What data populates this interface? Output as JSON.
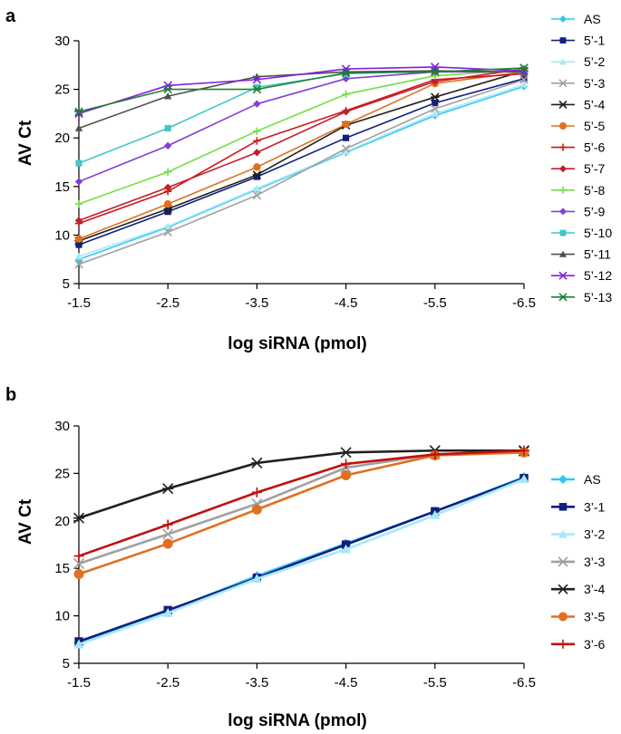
{
  "chart_data": [
    {
      "panel": "a",
      "type": "line",
      "title": "",
      "xlabel": "log siRNA (pmol)",
      "ylabel": "AV Ct",
      "x": [
        -1.5,
        -2.5,
        -3.5,
        -4.5,
        -5.5,
        -6.5
      ],
      "x_tick_labels": [
        "-1.5",
        "-2.5",
        "-3.5",
        "-4.5",
        "-5.5",
        "-6.5"
      ],
      "ylim": [
        5,
        30
      ],
      "y_ticks": [
        5,
        10,
        15,
        20,
        25,
        30
      ],
      "legend_position": "right",
      "series": [
        {
          "name": "AS",
          "color": "#30c8f0",
          "marker": "diamond",
          "values": [
            7.5,
            10.8,
            14.7,
            18.5,
            22.3,
            25.3
          ]
        },
        {
          "name": "5’-1",
          "color": "#102080",
          "marker": "square",
          "values": [
            9.0,
            12.4,
            16.0,
            20.0,
            23.6,
            26.1
          ]
        },
        {
          "name": "5’-2",
          "color": "#a8e8f8",
          "marker": "triangle",
          "values": [
            7.8,
            10.9,
            14.8,
            18.6,
            22.5,
            25.5
          ]
        },
        {
          "name": "5’-3",
          "color": "#a0a0a0",
          "marker": "x",
          "values": [
            7.0,
            10.3,
            14.1,
            18.9,
            23.0,
            26.0
          ]
        },
        {
          "name": "5’-4",
          "color": "#202020",
          "marker": "star",
          "values": [
            9.4,
            12.7,
            16.2,
            21.3,
            24.2,
            26.9
          ]
        },
        {
          "name": "5’-5",
          "color": "#e07020",
          "marker": "circle",
          "values": [
            9.6,
            13.2,
            17.0,
            21.4,
            25.6,
            26.8
          ]
        },
        {
          "name": "5’-6",
          "color": "#d01818",
          "marker": "plus",
          "values": [
            11.2,
            14.5,
            19.7,
            22.8,
            26.0,
            26.6
          ]
        },
        {
          "name": "5’-7",
          "color": "#c02030",
          "marker": "diamond",
          "values": [
            11.5,
            14.9,
            18.5,
            22.7,
            25.8,
            27.1
          ]
        },
        {
          "name": "5’-8",
          "color": "#70e040",
          "marker": "plus",
          "values": [
            13.2,
            16.5,
            20.7,
            24.5,
            26.4,
            27.0
          ]
        },
        {
          "name": "5’-9",
          "color": "#8040d8",
          "marker": "diamond",
          "values": [
            15.5,
            19.2,
            23.5,
            26.1,
            26.8,
            26.8
          ]
        },
        {
          "name": "5’-10",
          "color": "#40c8c8",
          "marker": "square",
          "values": [
            17.4,
            21.0,
            25.2,
            26.6,
            26.9,
            26.8
          ]
        },
        {
          "name": "5’-11",
          "color": "#505050",
          "marker": "triangle",
          "values": [
            21.0,
            24.3,
            26.3,
            26.8,
            26.9,
            26.8
          ]
        },
        {
          "name": "5’-12",
          "color": "#8020e0",
          "marker": "x",
          "values": [
            22.5,
            25.4,
            26.0,
            27.1,
            27.3,
            26.9
          ]
        },
        {
          "name": "5’-13",
          "color": "#208030",
          "marker": "star",
          "values": [
            22.7,
            25.0,
            25.0,
            26.7,
            26.8,
            27.2
          ]
        }
      ]
    },
    {
      "panel": "b",
      "type": "line",
      "title": "",
      "xlabel": "log siRNA (pmol)",
      "ylabel": "AV Ct",
      "x": [
        -1.5,
        -2.5,
        -3.5,
        -4.5,
        -5.5,
        -6.5
      ],
      "x_tick_labels": [
        "-1.5",
        "-2.5",
        "-3.5",
        "-4.5",
        "-5.5",
        "-6.5"
      ],
      "ylim": [
        5,
        30
      ],
      "y_ticks": [
        5,
        10,
        15,
        20,
        25,
        30
      ],
      "legend_position": "right",
      "series": [
        {
          "name": "AS",
          "color": "#30c8f0",
          "marker": "diamond",
          "values": [
            7.2,
            10.5,
            14.2,
            17.6,
            21.0,
            24.6
          ]
        },
        {
          "name": "3’-1",
          "color": "#102080",
          "marker": "square",
          "values": [
            7.3,
            10.6,
            14.0,
            17.5,
            21.0,
            24.5
          ]
        },
        {
          "name": "3’-2",
          "color": "#a8e8f8",
          "marker": "triangle",
          "values": [
            7.0,
            10.3,
            13.9,
            17.0,
            20.6,
            24.4
          ]
        },
        {
          "name": "3’-3",
          "color": "#a0a0a0",
          "marker": "x",
          "values": [
            15.5,
            18.6,
            21.8,
            25.6,
            27.0,
            27.3
          ]
        },
        {
          "name": "3’-4",
          "color": "#202020",
          "marker": "star",
          "values": [
            20.3,
            23.4,
            26.1,
            27.2,
            27.4,
            27.4
          ]
        },
        {
          "name": "3’-5",
          "color": "#e07020",
          "marker": "circle",
          "values": [
            14.4,
            17.6,
            21.2,
            24.8,
            26.9,
            27.2
          ]
        },
        {
          "name": "3’-6",
          "color": "#c01010",
          "marker": "plus",
          "values": [
            16.3,
            19.6,
            23.0,
            26.0,
            27.0,
            27.4
          ]
        }
      ]
    }
  ]
}
